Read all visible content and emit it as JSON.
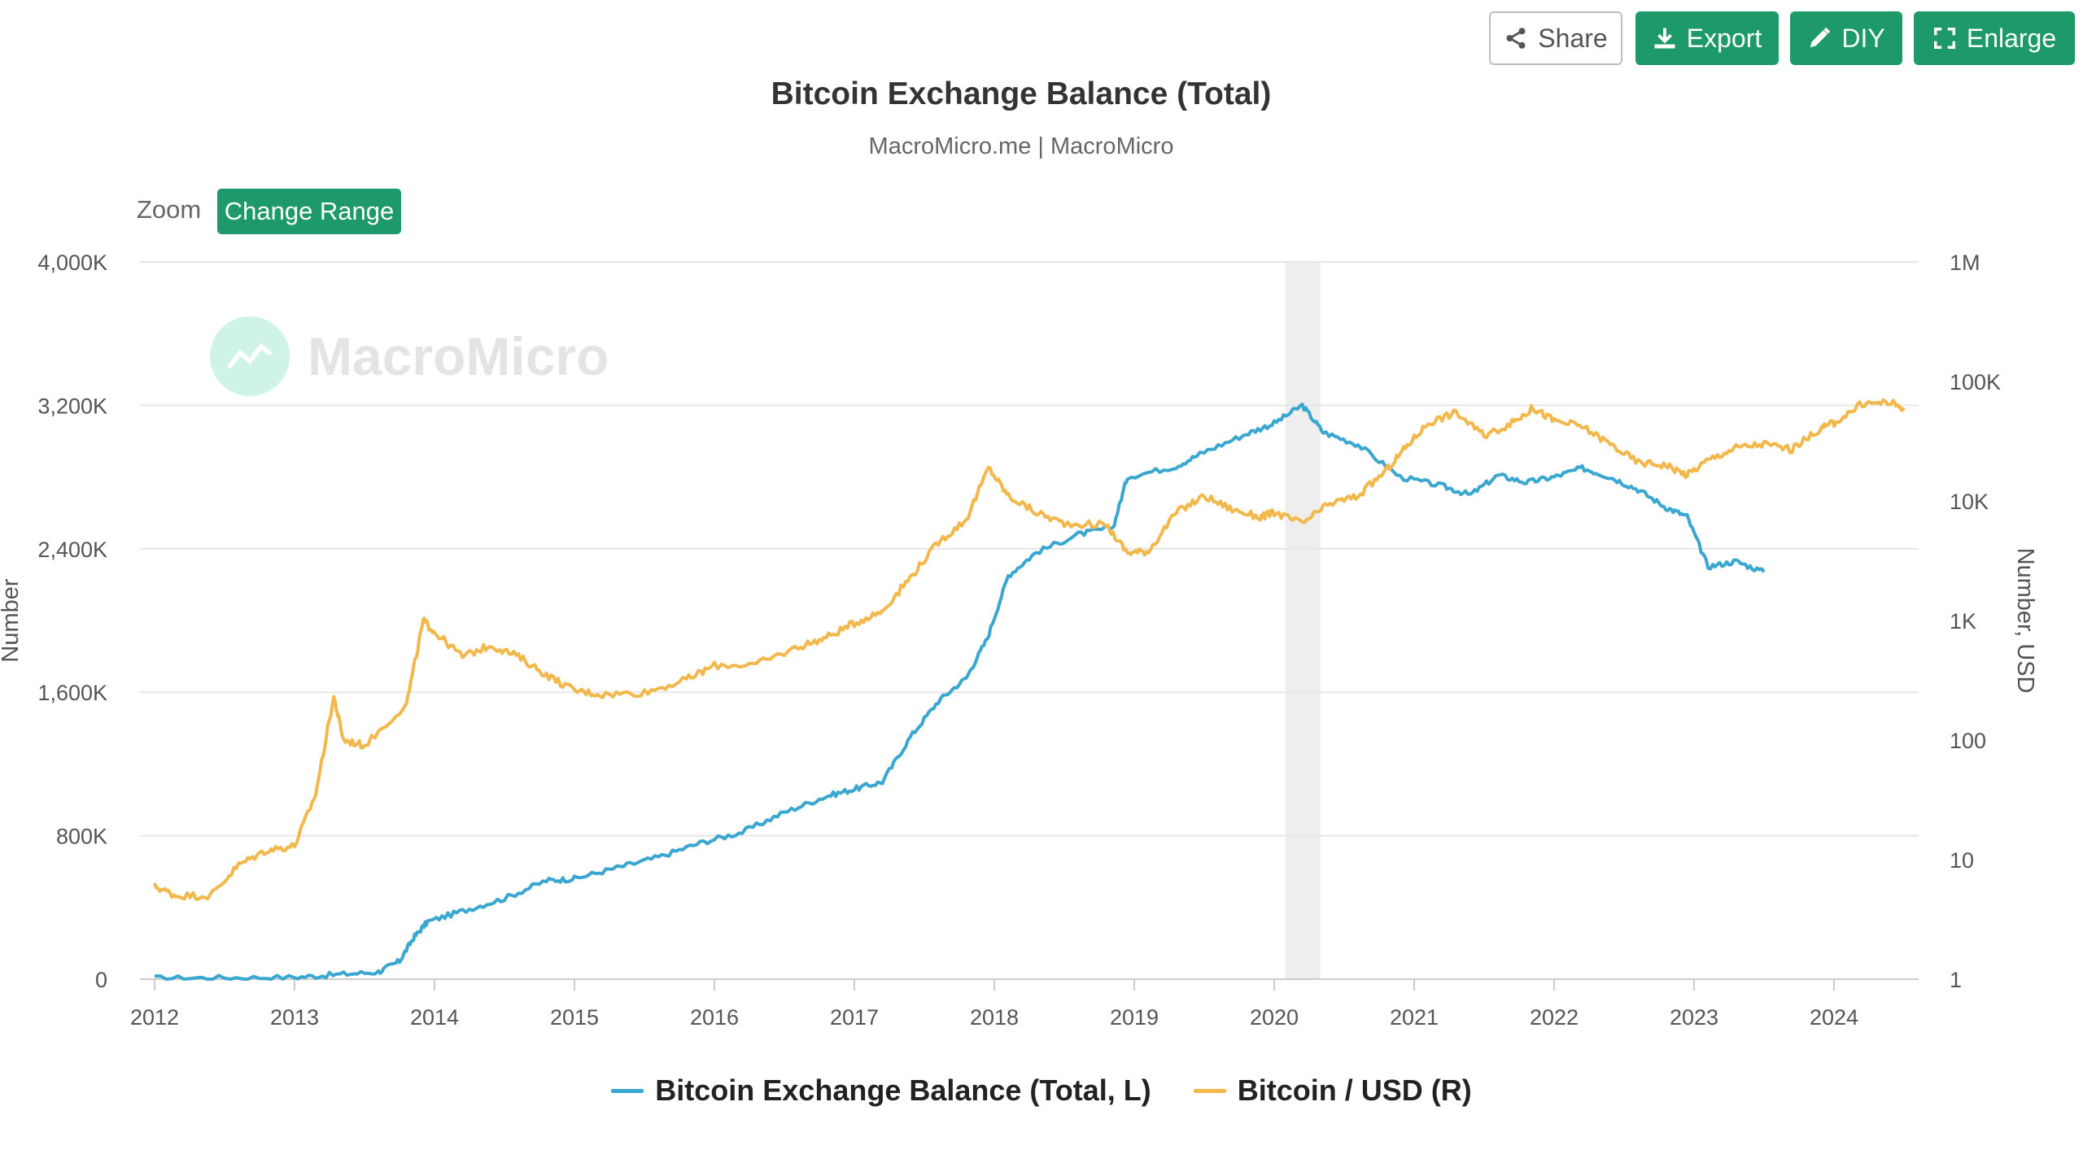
{
  "toolbar": {
    "share_label": "Share",
    "export_label": "Export",
    "diy_label": "DIY",
    "enlarge_label": "Enlarge"
  },
  "header": {
    "title": "Bitcoin Exchange Balance (Total)",
    "subtitle": "MacroMicro.me | MacroMicro"
  },
  "zoom": {
    "label": "Zoom",
    "button_label": "Change Range"
  },
  "watermark": {
    "text": "MacroMicro"
  },
  "colors": {
    "balance": "#3aa7d0",
    "price": "#f2b84b",
    "accent": "#1e9a6a",
    "recession_band": "#eeeeee"
  },
  "chart_data": {
    "type": "line",
    "title": "Bitcoin Exchange Balance (Total)",
    "subtitle": "MacroMicro.me | MacroMicro",
    "xlabel": "",
    "x_ticks": [
      "2012",
      "2013",
      "2014",
      "2015",
      "2016",
      "2017",
      "2018",
      "2019",
      "2020",
      "2021",
      "2022",
      "2023",
      "2024"
    ],
    "xlim": [
      2012,
      2024.6
    ],
    "left_axis": {
      "label": "Number",
      "ticks": [
        0,
        800,
        1600,
        2400,
        3200,
        4000
      ],
      "tick_labels": [
        "0",
        "800K",
        "1,600K",
        "2,400K",
        "3,200K",
        "4,000K"
      ],
      "ylim": [
        0,
        4000
      ]
    },
    "right_axis": {
      "label": "Number, USD",
      "scale": "log",
      "ticks": [
        1,
        10,
        100,
        1000,
        10000,
        100000,
        1000000
      ],
      "tick_labels": [
        "1",
        "10",
        "100",
        "1K",
        "10K",
        "100K",
        "1M"
      ],
      "ylim": [
        1,
        1000000
      ]
    },
    "shaded_period": [
      2020.08,
      2020.33
    ],
    "series": [
      {
        "name": "Bitcoin Exchange Balance (Total, L)",
        "axis": "left",
        "color": "#3aa7d0",
        "x": [
          2012.0,
          2012.5,
          2013.0,
          2013.3,
          2013.6,
          2013.75,
          2013.85,
          2013.95,
          2014.2,
          2014.5,
          2014.8,
          2015.0,
          2015.3,
          2015.6,
          2015.9,
          2016.2,
          2016.5,
          2016.8,
          2017.0,
          2017.2,
          2017.4,
          2017.6,
          2017.8,
          2017.95,
          2018.1,
          2018.3,
          2018.6,
          2018.85,
          2018.95,
          2019.3,
          2019.5,
          2019.8,
          2020.0,
          2020.2,
          2020.35,
          2020.6,
          2020.9,
          2021.2,
          2021.4,
          2021.6,
          2021.8,
          2022.0,
          2022.2,
          2022.4,
          2022.6,
          2022.8,
          2022.95,
          2023.1,
          2023.3,
          2023.5
        ],
        "values": [
          5,
          8,
          10,
          25,
          40,
          100,
          230,
          320,
          380,
          450,
          550,
          560,
          620,
          680,
          760,
          820,
          930,
          1020,
          1060,
          1100,
          1350,
          1550,
          1680,
          1900,
          2250,
          2380,
          2480,
          2520,
          2800,
          2860,
          2940,
          3040,
          3100,
          3200,
          3050,
          2980,
          2800,
          2750,
          2700,
          2810,
          2770,
          2800,
          2850,
          2800,
          2730,
          2630,
          2580,
          2300,
          2330,
          2270
        ]
      },
      {
        "name": "Bitcoin / USD (R)",
        "axis": "right",
        "color": "#f2b84b",
        "x": [
          2012.0,
          2012.15,
          2012.4,
          2012.6,
          2012.8,
          2013.0,
          2013.15,
          2013.28,
          2013.35,
          2013.5,
          2013.8,
          2013.92,
          2014.0,
          2014.2,
          2014.4,
          2014.6,
          2014.8,
          2015.0,
          2015.2,
          2015.5,
          2015.8,
          2016.0,
          2016.3,
          2016.6,
          2016.8,
          2017.0,
          2017.2,
          2017.4,
          2017.6,
          2017.8,
          2017.96,
          2018.1,
          2018.3,
          2018.5,
          2018.8,
          2018.95,
          2019.1,
          2019.3,
          2019.5,
          2019.7,
          2019.9,
          2020.0,
          2020.2,
          2020.4,
          2020.6,
          2020.8,
          2020.95,
          2021.1,
          2021.3,
          2021.5,
          2021.7,
          2021.85,
          2022.0,
          2022.2,
          2022.4,
          2022.6,
          2022.8,
          2022.95,
          2023.1,
          2023.3,
          2023.5,
          2023.7,
          2023.9,
          2024.0,
          2024.2,
          2024.4,
          2024.5
        ],
        "values": [
          6,
          5,
          5,
          9,
          12,
          13,
          35,
          230,
          100,
          90,
          200,
          1000,
          800,
          500,
          620,
          500,
          350,
          260,
          240,
          250,
          320,
          420,
          430,
          600,
          720,
          950,
          1200,
          2300,
          4500,
          7000,
          19000,
          11000,
          8000,
          6500,
          6300,
          3700,
          3800,
          8000,
          11000,
          8500,
          7300,
          8000,
          6500,
          9500,
          11000,
          18000,
          29000,
          45000,
          55000,
          35000,
          45000,
          60000,
          47000,
          42000,
          30000,
          21000,
          20000,
          16500,
          22000,
          28000,
          30000,
          27000,
          40000,
          45000,
          65000,
          67000,
          60000
        ]
      }
    ]
  },
  "legend": [
    {
      "label": "Bitcoin Exchange Balance (Total, L)"
    },
    {
      "label": "Bitcoin / USD (R)"
    }
  ]
}
